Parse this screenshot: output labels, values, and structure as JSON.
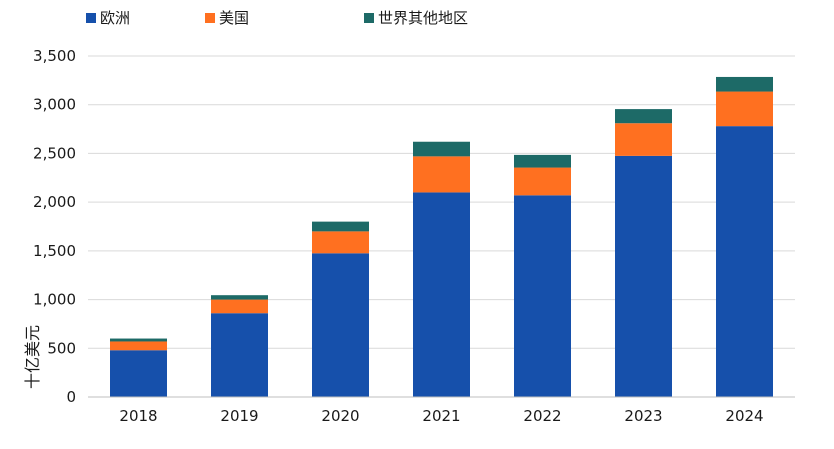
{
  "chart_data": {
    "type": "bar",
    "stacked": true,
    "title": "",
    "xlabel": "",
    "ylabel": "十亿美元",
    "categories": [
      "2018",
      "2019",
      "2020",
      "2021",
      "2022",
      "2023",
      "2024"
    ],
    "series": [
      {
        "name": "欧洲",
        "color": "#1650ab",
        "values": [
          480,
          860,
          1475,
          2100,
          2070,
          2475,
          2780
        ]
      },
      {
        "name": "美国",
        "color": "#ff7020",
        "values": [
          90,
          140,
          225,
          370,
          285,
          335,
          355
        ]
      },
      {
        "name": "世界其他地区",
        "color": "#1d6a67",
        "values": [
          30,
          45,
          100,
          150,
          130,
          145,
          150
        ]
      }
    ],
    "ylim": [
      0,
      3500
    ],
    "yticks": [
      0,
      500,
      1000,
      1500,
      2000,
      2500,
      3000,
      3500
    ],
    "ytick_labels": [
      "0",
      "500",
      "1,000",
      "1,500",
      "2,000",
      "2,500",
      "3,000",
      "3,500"
    ],
    "grid": true,
    "legend_position": "top-left"
  }
}
